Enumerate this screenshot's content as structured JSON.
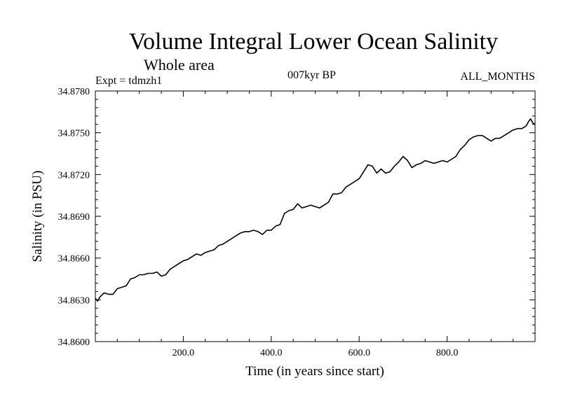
{
  "chart_data": {
    "type": "line",
    "title": "Volume Integral Lower Ocean Salinity",
    "subtitle": "Whole area",
    "experiment": "Expt = tdmzh1",
    "period": "007kyr BP",
    "months": "ALL_MONTHS",
    "xlabel": "Time (in years since start)",
    "ylabel": "Salinity (in PSU)",
    "xlim": [
      0,
      1000
    ],
    "ylim": [
      34.86,
      34.878
    ],
    "x_ticks": [
      200,
      400,
      600,
      800
    ],
    "x_tick_labels": [
      "200.0",
      "400.0",
      "600.0",
      "800.0"
    ],
    "y_ticks": [
      34.86,
      34.863,
      34.866,
      34.869,
      34.872,
      34.875,
      34.878
    ],
    "y_tick_labels": [
      "34.8600",
      "34.8630",
      "34.8660",
      "34.8690",
      "34.8720",
      "34.8750",
      "34.8780"
    ],
    "grid": false,
    "series": [
      {
        "name": "Salinity",
        "x": [
          0,
          5,
          10,
          20,
          30,
          40,
          50,
          60,
          70,
          80,
          90,
          100,
          110,
          120,
          130,
          140,
          150,
          160,
          170,
          180,
          190,
          200,
          210,
          220,
          230,
          240,
          250,
          260,
          270,
          280,
          290,
          300,
          310,
          320,
          330,
          340,
          350,
          360,
          370,
          380,
          390,
          400,
          410,
          420,
          430,
          440,
          450,
          460,
          470,
          480,
          490,
          500,
          510,
          520,
          530,
          540,
          550,
          560,
          570,
          580,
          590,
          600,
          610,
          620,
          630,
          640,
          650,
          660,
          670,
          680,
          690,
          700,
          710,
          720,
          730,
          740,
          750,
          760,
          770,
          780,
          790,
          800,
          810,
          820,
          830,
          840,
          850,
          860,
          870,
          880,
          890,
          900,
          910,
          920,
          930,
          940,
          950,
          960,
          970,
          980,
          985,
          990,
          995,
          1000
        ],
        "values": [
          34.8631,
          34.8629,
          34.8632,
          34.8635,
          34.8634,
          34.8634,
          34.8638,
          34.8639,
          34.864,
          34.8645,
          34.8646,
          34.8648,
          34.8648,
          34.8649,
          34.8649,
          34.865,
          34.8647,
          34.8648,
          34.8652,
          34.8654,
          34.8656,
          34.8658,
          34.8659,
          34.8661,
          34.8663,
          34.8662,
          34.8664,
          34.8665,
          34.8666,
          34.8669,
          34.867,
          34.8672,
          34.8674,
          34.8676,
          34.8678,
          34.8679,
          34.8679,
          34.868,
          34.8679,
          34.8677,
          34.868,
          34.868,
          34.8683,
          34.8684,
          34.8692,
          34.8694,
          34.8695,
          34.8699,
          34.8696,
          34.8697,
          34.8698,
          34.8697,
          34.8696,
          34.8698,
          34.87,
          34.8706,
          34.8706,
          34.8707,
          34.8711,
          34.8713,
          34.8715,
          34.8717,
          34.8722,
          34.8727,
          34.8726,
          34.8721,
          34.8724,
          34.8721,
          34.8722,
          34.8726,
          34.8729,
          34.8733,
          34.873,
          34.8725,
          34.8727,
          34.8728,
          34.873,
          34.8729,
          34.8728,
          34.8729,
          34.873,
          34.8729,
          34.8731,
          34.8733,
          34.8738,
          34.8741,
          34.8745,
          34.8747,
          34.8748,
          34.8748,
          34.8746,
          34.8744,
          34.8746,
          34.8746,
          34.8748,
          34.875,
          34.8752,
          34.8753,
          34.8753,
          34.8755,
          34.8758,
          34.876,
          34.8757,
          34.8756
        ]
      }
    ]
  }
}
